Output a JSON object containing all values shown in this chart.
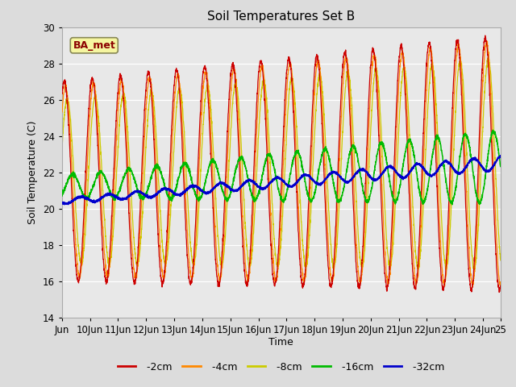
{
  "title": "Soil Temperatures Set B",
  "xlabel": "Time",
  "ylabel": "Soil Temperature (C)",
  "ylim": [
    14,
    30
  ],
  "background_color": "#dcdcdc",
  "plot_bg_color": "#e8e8e8",
  "series_colors": {
    "-2cm": "#cc0000",
    "-4cm": "#ff8800",
    "-8cm": "#cccc00",
    "-16cm": "#00bb00",
    "-32cm": "#0000cc"
  },
  "legend_label": "BA_met",
  "x_tick_labels": [
    "Jun",
    "10Jun",
    "11Jun",
    "12Jun",
    "13Jun",
    "14Jun",
    "15Jun",
    "16Jun",
    "17Jun",
    "18Jun",
    "19Jun",
    "20Jun",
    "21Jun",
    "22Jun",
    "23Jun",
    "24Jun",
    "25"
  ],
  "x_tick_positions": [
    0,
    24,
    48,
    72,
    96,
    120,
    144,
    168,
    192,
    216,
    240,
    264,
    288,
    312,
    336,
    360,
    375
  ]
}
